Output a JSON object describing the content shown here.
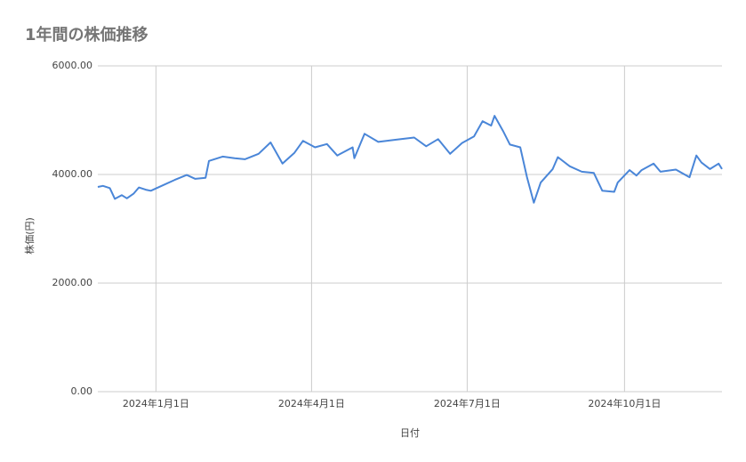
{
  "chart_data": {
    "type": "line",
    "title": "1年間の株価推移",
    "x_label": "日付",
    "y_label": "株価(円)",
    "x": [
      "2023-11-28",
      "2023-12-01",
      "2023-12-05",
      "2023-12-08",
      "2023-12-12",
      "2023-12-15",
      "2023-12-19",
      "2023-12-22",
      "2023-12-26",
      "2023-12-29",
      "2024-01-05",
      "2024-01-12",
      "2024-01-19",
      "2024-01-24",
      "2024-01-30",
      "2024-02-01",
      "2024-02-09",
      "2024-02-16",
      "2024-02-22",
      "2024-03-01",
      "2024-03-08",
      "2024-03-15",
      "2024-03-22",
      "2024-03-27",
      "2024-04-03",
      "2024-04-10",
      "2024-04-16",
      "2024-04-25",
      "2024-04-26",
      "2024-05-02",
      "2024-05-10",
      "2024-05-20",
      "2024-05-31",
      "2024-06-07",
      "2024-06-14",
      "2024-06-21",
      "2024-06-28",
      "2024-07-05",
      "2024-07-10",
      "2024-07-15",
      "2024-07-17",
      "2024-07-22",
      "2024-07-26",
      "2024-08-01",
      "2024-08-05",
      "2024-08-09",
      "2024-08-13",
      "2024-08-20",
      "2024-08-23",
      "2024-08-30",
      "2024-09-06",
      "2024-09-13",
      "2024-09-18",
      "2024-09-25",
      "2024-09-27",
      "2024-10-04",
      "2024-10-08",
      "2024-10-11",
      "2024-10-18",
      "2024-10-22",
      "2024-10-31",
      "2024-11-08",
      "2024-11-12",
      "2024-11-15",
      "2024-11-20",
      "2024-11-25",
      "2024-11-27"
    ],
    "series": [
      {
        "name": "株価",
        "color": "#4a86d8",
        "values": [
          3770,
          3790,
          3750,
          3550,
          3620,
          3560,
          3650,
          3760,
          3720,
          3700,
          3800,
          3900,
          3990,
          3920,
          3940,
          4250,
          4330,
          4300,
          4280,
          4380,
          4590,
          4200,
          4400,
          4620,
          4500,
          4560,
          4350,
          4500,
          4300,
          4750,
          4600,
          4640,
          4680,
          4520,
          4650,
          4380,
          4580,
          4700,
          4980,
          4900,
          5080,
          4800,
          4550,
          4500,
          3950,
          3480,
          3850,
          4100,
          4320,
          4150,
          4050,
          4030,
          3700,
          3680,
          3850,
          4080,
          3980,
          4080,
          4200,
          4050,
          4090,
          3950,
          4350,
          4220,
          4100,
          4200,
          4100
        ]
      }
    ],
    "xlim": [
      "2023-11-28",
      "2024-11-27"
    ],
    "xticks": [
      {
        "value": "2024-01-01",
        "label": "2024年1月1日"
      },
      {
        "value": "2024-04-01",
        "label": "2024年4月1日"
      },
      {
        "value": "2024-07-01",
        "label": "2024年7月1日"
      },
      {
        "value": "2024-10-01",
        "label": "2024年10月1日"
      }
    ],
    "ylim": [
      0,
      6000
    ],
    "yticks": [
      {
        "value": 0,
        "label": "0.00"
      },
      {
        "value": 2000,
        "label": "2000.00"
      },
      {
        "value": 4000,
        "label": "4000.00"
      },
      {
        "value": 6000,
        "label": "6000.00"
      }
    ],
    "grid": true
  }
}
